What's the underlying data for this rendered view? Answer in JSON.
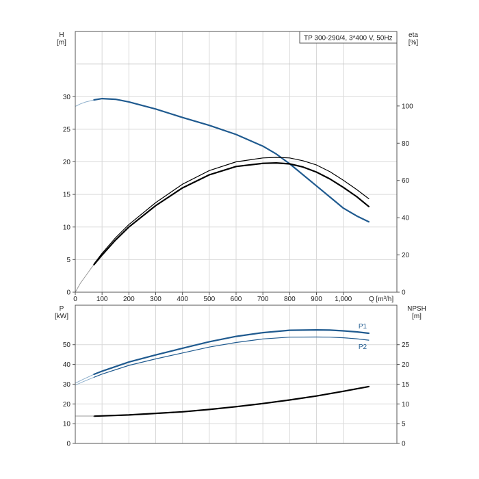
{
  "chart_data": [
    {
      "type": "line",
      "legend_text": "TP 300-290/4, 3*400 V, 50Hz",
      "x_label": "Q [m³/h]",
      "y_left_label": [
        "H",
        "[m]"
      ],
      "y_right_label": [
        "eta",
        "[%]"
      ],
      "xlim": [
        0,
        1200
      ],
      "ylim_left": [
        0,
        40
      ],
      "ylim_right": [
        0,
        140
      ],
      "x_ticks": [
        0,
        100,
        200,
        300,
        400,
        500,
        600,
        700,
        800,
        900,
        1000
      ],
      "x_tick_labels": [
        "0",
        "100",
        "200",
        "300",
        "400",
        "500",
        "600",
        "700",
        "800",
        "900",
        "1,000"
      ],
      "y_left_ticks": [
        0,
        5,
        10,
        15,
        20,
        25,
        30
      ],
      "y_left_tick_labels": [
        "0",
        "5",
        "10",
        "15",
        "20",
        "25",
        "30"
      ],
      "y_right_ticks": [
        0,
        20,
        40,
        60,
        80,
        100
      ],
      "y_right_tick_labels": [
        "0",
        "20",
        "40",
        "60",
        "80",
        "100"
      ],
      "grid": true,
      "series": [
        {
          "axis": "left",
          "color": "#1f5a8f",
          "extension_x": [
            0,
            20,
            40,
            60,
            70
          ],
          "extension_y": [
            28.5,
            28.9,
            29.2,
            29.4,
            29.5
          ],
          "x": [
            70,
            100,
            150,
            200,
            300,
            400,
            500,
            600,
            700,
            750,
            800,
            850,
            900,
            950,
            1000,
            1050,
            1095
          ],
          "y": [
            29.5,
            29.7,
            29.6,
            29.2,
            28.1,
            26.8,
            25.6,
            24.2,
            22.4,
            21.2,
            19.7,
            18.0,
            16.3,
            14.6,
            12.9,
            11.7,
            10.8
          ]
        },
        {
          "axis": "right",
          "color": "#000000",
          "extension_x": [
            0,
            20,
            40,
            60,
            70
          ],
          "extension_y": [
            0,
            5,
            9,
            13,
            14.8
          ],
          "x": [
            70,
            100,
            150,
            200,
            300,
            400,
            500,
            600,
            700,
            750,
            800,
            850,
            900,
            950,
            1000,
            1050,
            1095
          ],
          "y": [
            14.8,
            20,
            28,
            35,
            46.5,
            56,
            63,
            67.5,
            69.2,
            69.4,
            68.9,
            67.2,
            64.5,
            60.8,
            56.3,
            51.3,
            46.0
          ]
        },
        {
          "axis": "right",
          "color": "#000000",
          "x": [
            70,
            100,
            150,
            200,
            300,
            400,
            500,
            600,
            700,
            750,
            800,
            850,
            900,
            950,
            1000,
            1050,
            1095
          ],
          "y": [
            15.2,
            20.9,
            29.2,
            36.3,
            48.1,
            58,
            65.3,
            70,
            72.1,
            72.4,
            72.1,
            70.6,
            68.3,
            64.7,
            60.1,
            55.1,
            50.2
          ]
        }
      ]
    },
    {
      "type": "line",
      "y_left_label": [
        "P",
        "[kW]"
      ],
      "y_right_label": [
        "NPSH",
        "[m]"
      ],
      "xlim": [
        0,
        1200
      ],
      "ylim_left": [
        0,
        70
      ],
      "ylim_right": [
        0,
        35
      ],
      "x_ticks": [
        0,
        100,
        200,
        300,
        400,
        500,
        600,
        700,
        800,
        900,
        1000
      ],
      "y_left_ticks": [
        0,
        10,
        20,
        30,
        40,
        50
      ],
      "y_left_tick_labels": [
        "0",
        "10",
        "20",
        "30",
        "40",
        "50"
      ],
      "y_right_ticks": [
        0,
        5,
        10,
        15,
        20,
        25
      ],
      "y_right_tick_labels": [
        "0",
        "5",
        "10",
        "15",
        "20",
        "25"
      ],
      "grid": true,
      "series": [
        {
          "name": "P1",
          "axis": "left",
          "color": "#1f5a8f",
          "extension_x": [
            0,
            30,
            70
          ],
          "extension_y": [
            30.5,
            32.5,
            35.0
          ],
          "x": [
            70,
            100,
            200,
            300,
            400,
            500,
            600,
            700,
            800,
            900,
            950,
            1000,
            1050,
            1095
          ],
          "y": [
            35.0,
            36.6,
            41.2,
            44.8,
            48.2,
            51.5,
            54.2,
            56.1,
            57.3,
            57.5,
            57.4,
            57.0,
            56.5,
            55.8
          ]
        },
        {
          "name": "P2",
          "axis": "left",
          "color": "#1f5a8f",
          "extension_x": [
            0,
            30,
            70
          ],
          "extension_y": [
            29.5,
            31.3,
            33.5
          ],
          "x": [
            70,
            100,
            200,
            300,
            400,
            500,
            600,
            700,
            800,
            900,
            950,
            1000,
            1050,
            1095
          ],
          "y": [
            33.5,
            35.1,
            39.5,
            42.8,
            45.8,
            48.8,
            51.1,
            52.9,
            53.8,
            53.9,
            53.8,
            53.5,
            53.0,
            52.3
          ]
        },
        {
          "axis": "right",
          "color": "#000000",
          "x": [
            70,
            200,
            300,
            400,
            500,
            600,
            700,
            800,
            900,
            1000,
            1095
          ],
          "y": [
            6.9,
            7.2,
            7.6,
            8.0,
            8.6,
            9.3,
            10.1,
            11.0,
            12.0,
            13.2,
            14.4
          ]
        }
      ]
    }
  ]
}
